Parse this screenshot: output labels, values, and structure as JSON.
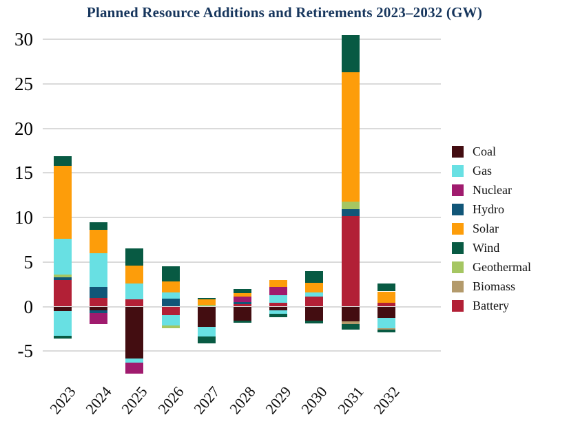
{
  "chart_data": {
    "type": "bar",
    "stacked": true,
    "title": "Planned Resource Additions and Retirements 2023–2032 (GW)",
    "title_color": "#17365d",
    "unit": "GW",
    "categories": [
      "2023",
      "2024",
      "2025",
      "2026",
      "2027",
      "2028",
      "2029",
      "2030",
      "2031",
      "2032"
    ],
    "y_ticks": [
      30,
      25,
      20,
      15,
      10,
      5,
      0,
      -5
    ],
    "ylim": [
      -8,
      31
    ],
    "grid": true,
    "gridline_color": "#dadada",
    "legend_position": "right",
    "legend_items": [
      "Coal",
      "Gas",
      "Nuclear",
      "Hydro",
      "Solar",
      "Wind",
      "Geothermal",
      "Biomass",
      "Battery"
    ],
    "series_colors": {
      "Coal": "#430d11",
      "Gas": "#68e0e3",
      "Nuclear": "#a01b6e",
      "Hydro": "#115678",
      "Solar": "#fd9d0a",
      "Wind": "#085a43",
      "Geothermal": "#a5c662",
      "Biomass": "#b39a6b",
      "Battery": "#b22036"
    },
    "bars": [
      {
        "category": "2023",
        "additions": [
          [
            "Battery",
            3.0
          ],
          [
            "Hydro",
            0.3
          ],
          [
            "Geothermal",
            0.3
          ],
          [
            "Gas",
            4.0
          ],
          [
            "Solar",
            8.2
          ],
          [
            "Wind",
            1.1
          ]
        ],
        "retirements": [
          [
            "Coal",
            0.5
          ],
          [
            "Gas",
            2.8
          ],
          [
            "Wind",
            0.3
          ]
        ]
      },
      {
        "category": "2024",
        "additions": [
          [
            "Battery",
            1.0
          ],
          [
            "Hydro",
            1.2
          ],
          [
            "Gas",
            3.8
          ],
          [
            "Solar",
            2.6
          ],
          [
            "Wind",
            0.9
          ]
        ],
        "retirements": [
          [
            "Coal",
            0.4
          ],
          [
            "Hydro",
            0.3
          ],
          [
            "Nuclear",
            1.3
          ]
        ]
      },
      {
        "category": "2025",
        "additions": [
          [
            "Battery",
            0.8
          ],
          [
            "Gas",
            1.8
          ],
          [
            "Solar",
            2.0
          ],
          [
            "Wind",
            1.9
          ]
        ],
        "retirements": [
          [
            "Coal",
            5.8
          ],
          [
            "Gas",
            0.5
          ],
          [
            "Nuclear",
            1.2
          ]
        ]
      },
      {
        "category": "2026",
        "additions": [
          [
            "Hydro",
            0.9
          ],
          [
            "Gas",
            0.7
          ],
          [
            "Solar",
            1.2
          ],
          [
            "Wind",
            1.7
          ]
        ],
        "retirements": [
          [
            "Battery",
            1.0
          ],
          [
            "Gas",
            1.1
          ],
          [
            "Geothermal",
            0.3
          ]
        ]
      },
      {
        "category": "2027",
        "additions": [
          [
            "Geothermal",
            0.2
          ],
          [
            "Solar",
            0.6
          ],
          [
            "Wind",
            0.2
          ]
        ],
        "retirements": [
          [
            "Coal",
            2.3
          ],
          [
            "Gas",
            1.1
          ],
          [
            "Wind",
            0.7
          ]
        ]
      },
      {
        "category": "2028",
        "additions": [
          [
            "Battery",
            0.3
          ],
          [
            "Hydro",
            0.2
          ],
          [
            "Nuclear",
            0.6
          ],
          [
            "Solar",
            0.4
          ],
          [
            "Wind",
            0.5
          ]
        ],
        "retirements": [
          [
            "Coal",
            1.6
          ],
          [
            "Wind",
            0.2
          ]
        ]
      },
      {
        "category": "2029",
        "additions": [
          [
            "Battery",
            0.4
          ],
          [
            "Gas",
            0.9
          ],
          [
            "Nuclear",
            0.9
          ],
          [
            "Solar",
            0.8
          ]
        ],
        "retirements": [
          [
            "Coal",
            0.4
          ],
          [
            "Gas",
            0.4
          ],
          [
            "Wind",
            0.4
          ]
        ]
      },
      {
        "category": "2030",
        "additions": [
          [
            "Battery",
            1.1
          ],
          [
            "Gas",
            0.5
          ],
          [
            "Solar",
            1.1
          ],
          [
            "Wind",
            1.3
          ]
        ],
        "retirements": [
          [
            "Coal",
            1.6
          ],
          [
            "Wind",
            0.3
          ]
        ]
      },
      {
        "category": "2031",
        "additions": [
          [
            "Battery",
            10.2
          ],
          [
            "Hydro",
            0.7
          ],
          [
            "Geothermal",
            0.9
          ],
          [
            "Solar",
            14.5
          ],
          [
            "Wind",
            4.2
          ]
        ],
        "retirements": [
          [
            "Coal",
            1.7
          ],
          [
            "Biomass",
            0.3
          ],
          [
            "Wind",
            0.6
          ]
        ]
      },
      {
        "category": "2032",
        "additions": [
          [
            "Battery",
            0.4
          ],
          [
            "Solar",
            1.3
          ],
          [
            "Wind",
            0.9
          ]
        ],
        "retirements": [
          [
            "Coal",
            1.3
          ],
          [
            "Gas",
            1.1
          ],
          [
            "Biomass",
            0.2
          ],
          [
            "Wind",
            0.3
          ]
        ]
      }
    ]
  }
}
